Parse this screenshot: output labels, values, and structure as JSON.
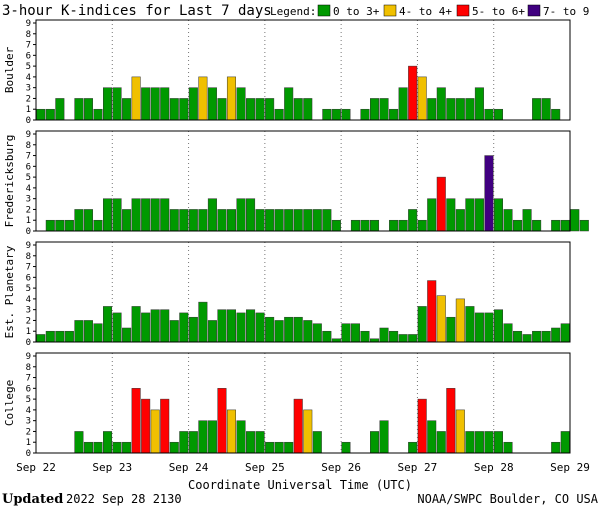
{
  "chart_data": {
    "type": "bar",
    "title": "3-hour K-indices for Last 7 days",
    "legend_title": "Legend:",
    "legend": [
      {
        "label": "0 to 3+",
        "color": "#009900",
        "min": 0,
        "max": 3.99
      },
      {
        "label": "4- to 4+",
        "color": "#f0c000",
        "min": 4,
        "max": 4.99
      },
      {
        "label": "5- to 6+",
        "color": "#ff0000",
        "min": 5,
        "max": 6.99
      },
      {
        "label": "7- to 9",
        "color": "#400080",
        "min": 7,
        "max": 9
      }
    ],
    "legend_placement": "top-right",
    "ylim": [
      0,
      9
    ],
    "yticks": [
      0,
      1,
      2,
      3,
      4,
      5,
      6,
      7,
      8,
      9
    ],
    "grid": true,
    "x_ticks": [
      "Sep 22",
      "Sep 23",
      "Sep 24",
      "Sep 25",
      "Sep 26",
      "Sep 27",
      "Sep 28",
      "Sep 29"
    ],
    "xlabel": "Coordinate Universal Time (UTC)",
    "intervals_per_day": 8,
    "series": [
      {
        "name": "Boulder",
        "values": [
          1,
          1,
          2,
          0,
          2,
          2,
          1,
          3,
          3,
          2,
          4,
          3,
          3,
          3,
          2,
          2,
          3,
          4,
          3,
          2,
          4,
          3,
          2,
          2,
          2,
          1,
          3,
          2,
          2,
          0,
          1,
          1,
          1,
          0,
          1,
          2,
          2,
          1,
          3,
          5,
          4,
          2,
          3,
          2,
          2,
          2,
          3,
          1,
          1,
          0,
          0,
          0,
          2,
          2,
          1,
          0
        ]
      },
      {
        "name": "Fredericksburg",
        "values": [
          0,
          1,
          1,
          1,
          2,
          2,
          1,
          3,
          3,
          2,
          3,
          3,
          3,
          3,
          2,
          2,
          2,
          2,
          3,
          2,
          2,
          3,
          3,
          2,
          2,
          2,
          2,
          2,
          2,
          2,
          2,
          1,
          0,
          1,
          1,
          1,
          0,
          1,
          1,
          2,
          1,
          3,
          5,
          3,
          2,
          3,
          3,
          7,
          3,
          2,
          1,
          2,
          1,
          0,
          1,
          1,
          2,
          1,
          0
        ]
      },
      {
        "name": "Est. Planetary",
        "values": [
          0.7,
          1,
          1,
          1,
          2,
          2,
          1.7,
          3.3,
          2.7,
          1.3,
          3.3,
          2.7,
          3,
          3,
          2,
          2.7,
          2.3,
          3.7,
          2,
          3,
          3,
          2.7,
          3,
          2.7,
          2.3,
          2,
          2.3,
          2.3,
          2,
          1.7,
          1,
          0.3,
          1.7,
          1.7,
          1,
          0.3,
          1.3,
          1,
          0.7,
          0.7,
          3.3,
          5.7,
          4.3,
          2.3,
          4,
          3.3,
          2.7,
          2.7,
          3,
          1.7,
          1,
          0.7,
          1,
          1,
          1.3,
          1.7
        ]
      },
      {
        "name": "College",
        "values": [
          0,
          0,
          0,
          0,
          2,
          1,
          1,
          2,
          1,
          1,
          6,
          5,
          4,
          5,
          1,
          2,
          2,
          3,
          3,
          6,
          4,
          3,
          2,
          2,
          1,
          1,
          1,
          5,
          4,
          2,
          0,
          0,
          1,
          0,
          0,
          2,
          3,
          0,
          0,
          1,
          5,
          3,
          2,
          6,
          4,
          2,
          2,
          2,
          2,
          1,
          0,
          0,
          0,
          0,
          1,
          2,
          0
        ]
      }
    ]
  },
  "footer": {
    "updated_label": "Updated",
    "updated_value": "2022 Sep 28 2130",
    "source": "NOAA/SWPC Boulder, CO USA"
  }
}
